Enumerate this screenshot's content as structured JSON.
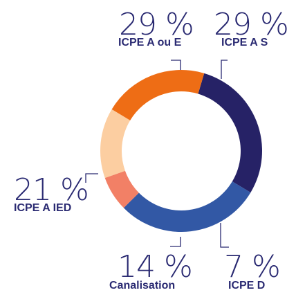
{
  "chart_data": {
    "type": "pie",
    "subtype": "donut",
    "title": "",
    "slices": [
      {
        "percent_label": "29 %",
        "name": "ICPE A ou E",
        "value": 29,
        "color": "#262266"
      },
      {
        "percent_label": "29 %",
        "name": "ICPE A S",
        "value": 29,
        "color": "#3258a5"
      },
      {
        "percent_label": "7 %",
        "name": "ICPE D",
        "value": 7,
        "color": "#f28066"
      },
      {
        "percent_label": "14 %",
        "name": "Canalisation",
        "value": 14,
        "color": "#fccea1"
      },
      {
        "percent_label": "21 %",
        "name": "ICPE A IED",
        "value": 21,
        "color": "#ee6d15"
      }
    ],
    "legend": "none",
    "grid": false
  }
}
